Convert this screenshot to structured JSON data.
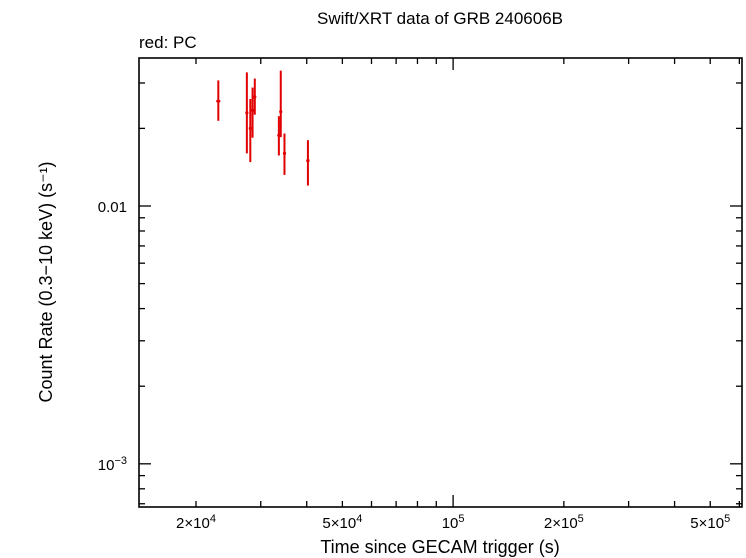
{
  "chart_data": {
    "type": "scatter",
    "title": "Swift/XRT data of GRB 240606B",
    "subtitle": "red: PC",
    "xlabel": "Time since GECAM trigger (s)",
    "ylabel": "Count Rate (0.3−10 keV) (s⁻¹)",
    "xscale": "log",
    "yscale": "log",
    "xlim": [
      14000,
      610000
    ],
    "ylim": [
      0.00068,
      0.0375
    ],
    "x_tick_labels": [
      {
        "value": 20000,
        "mant": "2×10",
        "exp": "4"
      },
      {
        "value": 50000,
        "mant": "5×10",
        "exp": "4"
      },
      {
        "value": 100000,
        "mant": "10",
        "exp": "5"
      },
      {
        "value": 200000,
        "mant": "2×10",
        "exp": "5"
      },
      {
        "value": 500000,
        "mant": "5×10",
        "exp": "5"
      }
    ],
    "y_tick_labels": [
      {
        "value": 0.01,
        "mant": "0.01",
        "exp": ""
      },
      {
        "value": 0.001,
        "mant": "10",
        "exp": "−3"
      }
    ],
    "series": [
      {
        "color": "#e00000",
        "points": [
          {
            "x": 23000,
            "y": 0.0255,
            "xerr": [
              22700,
              23300
            ],
            "yerr": [
              0.0214,
              0.0307
            ]
          },
          {
            "x": 27500,
            "y": 0.023,
            "xerr": [
              27300,
              27700
            ],
            "yerr": [
              0.016,
              0.033
            ]
          },
          {
            "x": 28100,
            "y": 0.02,
            "xerr": [
              27900,
              28300
            ],
            "yerr": [
              0.0148,
              0.026
            ]
          },
          {
            "x": 28500,
            "y": 0.0235,
            "xerr": [
              28300,
              28700
            ],
            "yerr": [
              0.0184,
              0.0288
            ]
          },
          {
            "x": 28900,
            "y": 0.0265,
            "xerr": [
              28700,
              29100
            ],
            "yerr": [
              0.0226,
              0.0312
            ]
          },
          {
            "x": 33600,
            "y": 0.0188,
            "xerr": [
              33300,
              33900
            ],
            "yerr": [
              0.0157,
              0.0223
            ]
          },
          {
            "x": 34000,
            "y": 0.0232,
            "xerr": [
              33800,
              34200
            ],
            "yerr": [
              0.0185,
              0.0335
            ]
          },
          {
            "x": 34800,
            "y": 0.016,
            "xerr": [
              34500,
              35100
            ],
            "yerr": [
              0.0132,
              0.0191
            ]
          },
          {
            "x": 40300,
            "y": 0.015,
            "xerr": [
              39900,
              40700
            ],
            "yerr": [
              0.012,
              0.018
            ]
          }
        ]
      }
    ]
  }
}
